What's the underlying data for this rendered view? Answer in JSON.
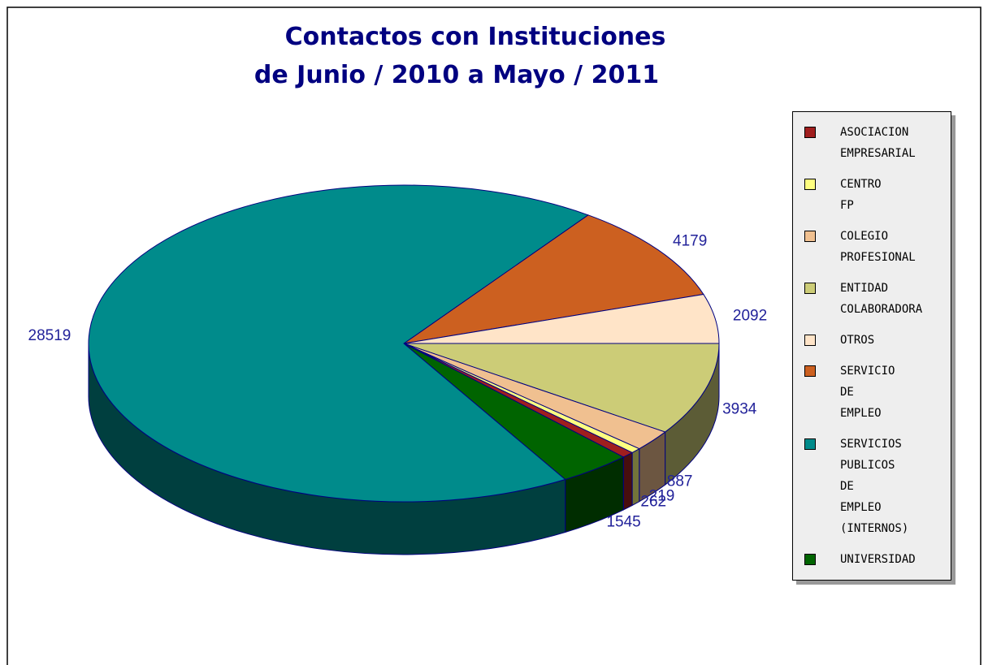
{
  "chart_data": {
    "type": "pie3d",
    "title": [
      "Contactos con Instituciones",
      "de Junio / 2010 a Mayo / 2011"
    ],
    "categories": [
      "ASOCIACION EMPRESARIAL",
      "CENTRO FP",
      "COLEGIO PROFESIONAL",
      "ENTIDAD COLABORADORA",
      "OTROS",
      "SERVICIO DE EMPLEO",
      "SERVICIOS PUBLICOS DE EMPLEO (INTERNOS)",
      "UNIVERSIDAD"
    ],
    "values": [
      262,
      219,
      887,
      3934,
      2092,
      4179,
      28519,
      1545
    ],
    "colors": [
      "#a01e1e",
      "#ffff80",
      "#f0c090",
      "#cccc77",
      "#ffe4c8",
      "#cc6020",
      "#008b8b",
      "#006400"
    ],
    "legend": "right"
  }
}
